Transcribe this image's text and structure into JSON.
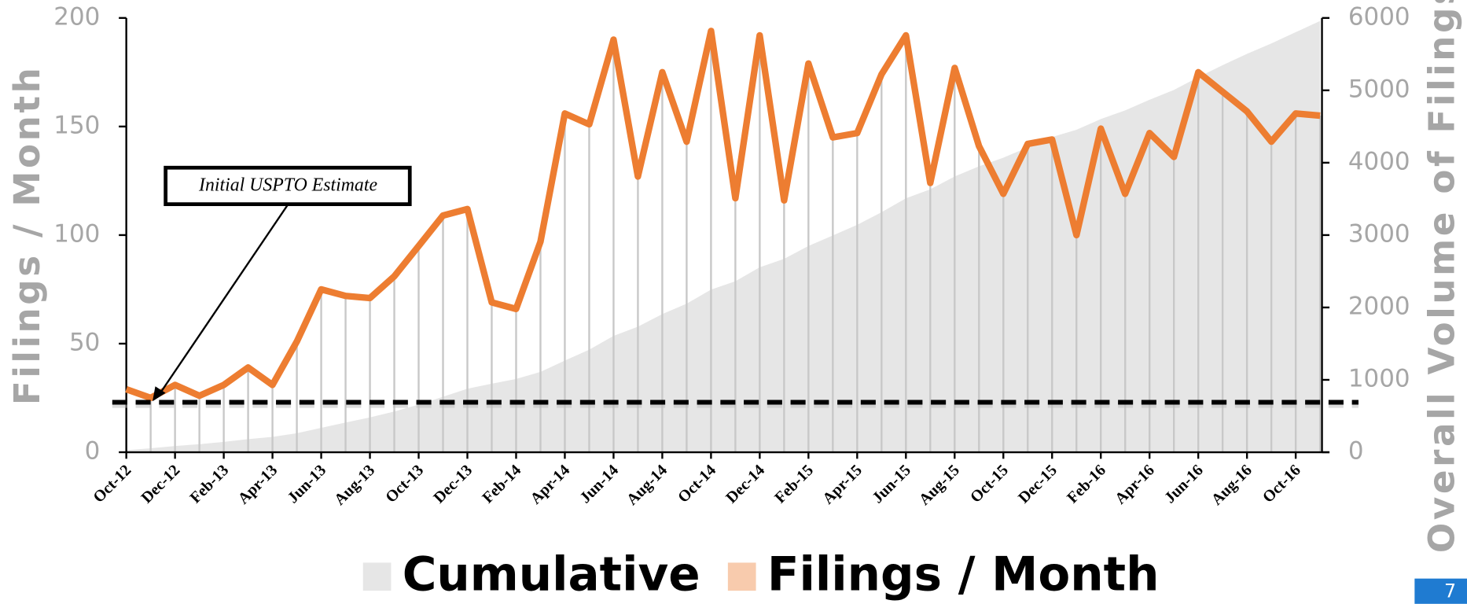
{
  "chart_data": {
    "type": "line",
    "categories": [
      "Oct-12",
      null,
      "Dec-12",
      null,
      "Feb-13",
      null,
      "Apr-13",
      null,
      "Jun-13",
      null,
      "Aug-13",
      null,
      "Oct-13",
      null,
      "Dec-13",
      null,
      "Feb-14",
      null,
      "Apr-14",
      null,
      "Jun-14",
      null,
      "Aug-14",
      null,
      "Oct-14",
      null,
      "Dec-14",
      null,
      "Feb-15",
      null,
      "Apr-15",
      null,
      "Jun-15",
      null,
      "Aug-15",
      null,
      "Oct-15",
      null,
      "Dec-15",
      null,
      "Feb-16",
      null,
      "Apr-16",
      null,
      "Jun-16",
      null,
      "Aug-16",
      null,
      "Oct-16",
      null
    ],
    "series": [
      {
        "name": "Cumulative",
        "color": "#e6e6e6",
        "axis": "y2",
        "values": [
          29,
          54,
          85,
          111,
          142,
          181,
          212,
          263,
          338,
          410,
          481,
          562,
          657,
          766,
          878,
          947,
          1013,
          1110,
          1266,
          1417,
          1607,
          1734,
          1909,
          2052,
          2246,
          2363,
          2555,
          2671,
          2850,
          2995,
          3142,
          3316,
          3508,
          3632,
          3809,
          3950,
          4069,
          4211,
          4355,
          4455,
          4604,
          4723,
          4870,
          5006,
          5181,
          5347,
          5504,
          5647,
          5803,
          5958
        ]
      },
      {
        "name": "Filings / Month",
        "color": "#ed7d31",
        "values": [
          29,
          25,
          31,
          26,
          31,
          39,
          31,
          51,
          75,
          72,
          71,
          81,
          95,
          109,
          112,
          69,
          66,
          97,
          156,
          151,
          190,
          127,
          175,
          143,
          194,
          117,
          192,
          116,
          179,
          145,
          147,
          174,
          192,
          124,
          177,
          141,
          119,
          142,
          144,
          100,
          149,
          119,
          147,
          136,
          175,
          166,
          157,
          143,
          156,
          155
        ]
      }
    ],
    "ylabel": "Filings / Month",
    "y2label": "Overall Volume of Filings",
    "ylim": [
      0,
      200
    ],
    "yticks": [
      0,
      50,
      100,
      150,
      200
    ],
    "y2lim": [
      0,
      6000
    ],
    "y2ticks": [
      0,
      1000,
      2000,
      3000,
      4000,
      5000,
      6000
    ],
    "annotation": {
      "text": "Initial USPTO Estimate",
      "value": 23
    },
    "page_number": "7"
  }
}
